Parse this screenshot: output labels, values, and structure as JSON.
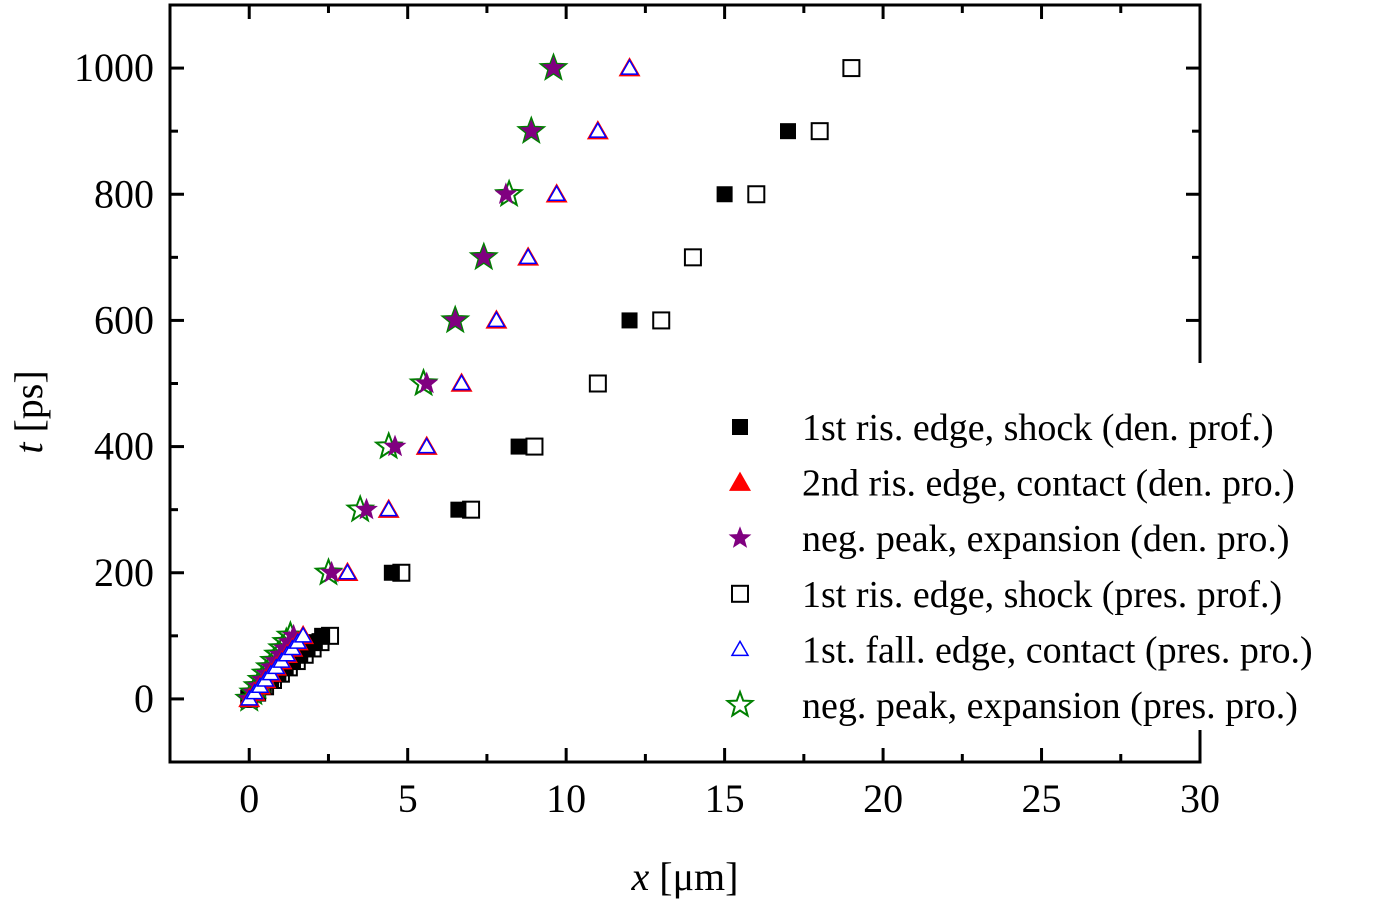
{
  "chart_data": {
    "type": "scatter",
    "xlabel_var": "x",
    "xlabel_unit": " [μm]",
    "ylabel_var": "t",
    "ylabel_unit": " [ps]",
    "xlim": [
      -2.5,
      30
    ],
    "ylim": [
      -100,
      1100
    ],
    "xticks": [
      0,
      5,
      10,
      15,
      20,
      25,
      30
    ],
    "yticks": [
      0,
      200,
      400,
      600,
      800,
      1000
    ],
    "grid": false,
    "legend_position": "right",
    "series": [
      {
        "name": "1st ris. edge, shock (den. prof.)",
        "marker": "square-filled",
        "color": "#000000",
        "x": [
          0,
          0.23,
          0.46,
          0.69,
          0.92,
          1.15,
          1.38,
          1.61,
          1.84,
          2.07,
          2.3,
          4.5,
          6.6,
          8.5,
          12,
          15,
          17
        ],
        "y": [
          0,
          10,
          20,
          30,
          40,
          50,
          60,
          70,
          80,
          90,
          100,
          200,
          300,
          400,
          600,
          800,
          900
        ]
      },
      {
        "name": "2nd ris. edge, contact (den. pro.)",
        "marker": "triangle-filled",
        "color": "#ff0000",
        "x": [
          0,
          0.17,
          0.34,
          0.51,
          0.68,
          0.85,
          1.02,
          1.19,
          1.36,
          1.53,
          1.7,
          3.1,
          4.4,
          5.6,
          6.7,
          7.8,
          8.8,
          9.7,
          11,
          12
        ],
        "y": [
          0,
          10,
          20,
          30,
          40,
          50,
          60,
          70,
          80,
          90,
          100,
          200,
          300,
          400,
          500,
          600,
          700,
          800,
          900,
          1000
        ]
      },
      {
        "name": "neg. peak, expansion (den. pro.)",
        "marker": "star-filled",
        "color": "#800080",
        "x": [
          0,
          0.14,
          0.28,
          0.42,
          0.56,
          0.7,
          0.84,
          0.98,
          1.12,
          1.26,
          1.4,
          2.6,
          3.7,
          4.6,
          5.6,
          6.5,
          7.4,
          8.1,
          8.9,
          9.6
        ],
        "y": [
          0,
          10,
          20,
          30,
          40,
          50,
          60,
          70,
          80,
          90,
          100,
          200,
          300,
          400,
          500,
          600,
          700,
          800,
          900,
          1000
        ]
      },
      {
        "name": "1st ris. edge, shock (pres. prof.)",
        "marker": "square-open",
        "color": "#000000",
        "x": [
          0,
          0.25,
          0.5,
          0.75,
          1,
          1.25,
          1.5,
          1.75,
          2,
          2.25,
          2.55,
          4.8,
          7,
          9,
          11,
          13,
          14,
          16,
          18,
          19
        ],
        "y": [
          0,
          10,
          20,
          30,
          40,
          50,
          60,
          70,
          80,
          90,
          100,
          200,
          300,
          400,
          500,
          600,
          700,
          800,
          900,
          1000
        ]
      },
      {
        "name": "1st. fall. edge, contact (pres. pro.)",
        "marker": "triangle-open",
        "color": "#0000ff",
        "x": [
          0,
          0.17,
          0.34,
          0.51,
          0.68,
          0.85,
          1.02,
          1.19,
          1.36,
          1.53,
          1.7,
          3.1,
          4.4,
          5.6,
          6.7,
          7.8,
          8.8,
          9.7,
          11,
          12
        ],
        "y": [
          0,
          10,
          20,
          30,
          40,
          50,
          60,
          70,
          80,
          90,
          100,
          200,
          300,
          400,
          500,
          600,
          700,
          800,
          900,
          1000
        ]
      },
      {
        "name": "neg. peak, expansion (pres. pro.)",
        "marker": "star-open",
        "color": "#008000",
        "x": [
          0,
          0.13,
          0.26,
          0.39,
          0.52,
          0.65,
          0.78,
          0.91,
          1.04,
          1.17,
          1.3,
          2.5,
          3.5,
          4.4,
          5.5,
          6.5,
          7.4,
          8.2,
          8.9,
          9.6
        ],
        "y": [
          0,
          10,
          20,
          30,
          40,
          50,
          60,
          70,
          80,
          90,
          100,
          200,
          300,
          400,
          500,
          600,
          700,
          800,
          900,
          1000
        ]
      }
    ]
  }
}
